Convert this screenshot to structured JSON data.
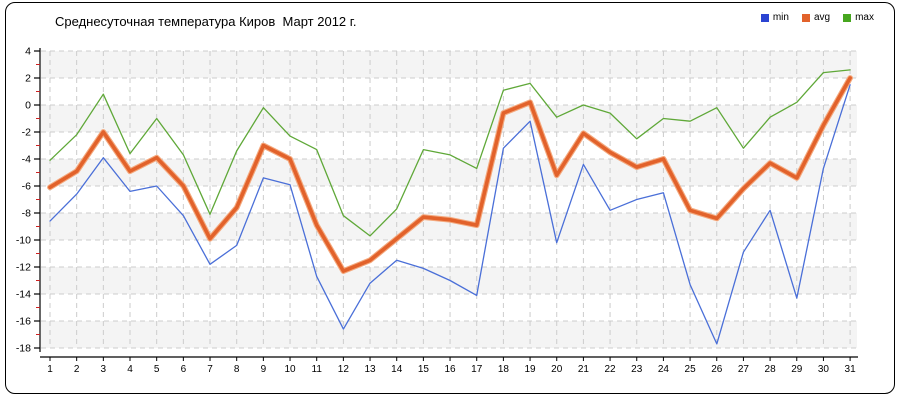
{
  "title": "Среднесуточная температура Киров  Март 2012 г.",
  "legend": {
    "items": [
      {
        "label": "min",
        "color": "#2b44d2"
      },
      {
        "label": "avg",
        "color": "#e2622b"
      },
      {
        "label": "max",
        "color": "#46a61f"
      }
    ]
  },
  "chart_data": {
    "type": "line",
    "title": "Среднесуточная температура Киров  Март 2012 г.",
    "x_label": "",
    "y_label": "",
    "x": [
      1,
      2,
      3,
      4,
      5,
      6,
      7,
      8,
      9,
      10,
      11,
      12,
      13,
      14,
      15,
      16,
      17,
      18,
      19,
      20,
      21,
      22,
      23,
      24,
      25,
      26,
      27,
      28,
      29,
      30,
      31
    ],
    "x_tick_labels": [
      "1",
      "2",
      "3",
      "4",
      "5",
      "6",
      "7",
      "8",
      "9",
      "10",
      "11",
      "12",
      "13",
      "14",
      "15",
      "16",
      "17",
      "18",
      "19",
      "20",
      "21",
      "22",
      "23",
      "24",
      "25",
      "26",
      "27",
      "28",
      "29",
      "30",
      "31"
    ],
    "y_tick_labels": [
      "4",
      "2",
      "0",
      "-2",
      "-4",
      "-6",
      "-8",
      "-10",
      "-12",
      "-14",
      "-16",
      "-18"
    ],
    "y_ticks": [
      4,
      2,
      0,
      -2,
      -4,
      -6,
      -8,
      -10,
      -12,
      -14,
      -16,
      -18
    ],
    "y_minor_ticks": [
      3,
      1,
      -1,
      -3,
      -5,
      -7,
      -9,
      -11,
      -13,
      -15,
      -17
    ],
    "ylim": [
      -18,
      4
    ],
    "grid": "dashed-both-axes",
    "band_fill": "#f4f4f4",
    "grid_color": "#cccccc",
    "axis_color": "#000000",
    "minor_tick_color": "#cc2222",
    "legend_position": "top-right",
    "series": [
      {
        "name": "min",
        "color": "#4a6fd8",
        "width": 1.3,
        "values": [
          -8.6,
          -6.6,
          -3.9,
          -6.4,
          -6.0,
          -8.2,
          -11.8,
          -10.4,
          -5.4,
          -5.9,
          -12.7,
          -16.6,
          -13.2,
          -11.5,
          -12.1,
          -13.0,
          -14.1,
          -3.2,
          -1.2,
          -10.2,
          -4.4,
          -7.8,
          -7.0,
          -6.5,
          -13.3,
          -17.7,
          -10.9,
          -7.8,
          -14.3,
          -4.7,
          1.5
        ]
      },
      {
        "name": "avg",
        "color": "#e2622b",
        "halo_color": "#f4a97e",
        "width": 3.6,
        "values": [
          -6.1,
          -4.9,
          -2.0,
          -4.9,
          -3.9,
          -6.0,
          -9.9,
          -7.6,
          -3.0,
          -4.0,
          -8.9,
          -12.3,
          -11.5,
          -9.9,
          -8.3,
          -8.5,
          -8.9,
          -0.6,
          0.2,
          -5.2,
          -2.1,
          -3.5,
          -4.6,
          -4.0,
          -7.8,
          -8.4,
          -6.2,
          -4.3,
          -5.4,
          -1.5,
          2.0
        ]
      },
      {
        "name": "max",
        "color": "#5fa838",
        "width": 1.3,
        "values": [
          -4.1,
          -2.2,
          0.8,
          -3.6,
          -1.0,
          -3.7,
          -8.1,
          -3.4,
          -0.2,
          -2.3,
          -3.3,
          -8.2,
          -9.7,
          -7.7,
          -3.3,
          -3.7,
          -4.7,
          1.1,
          1.6,
          -0.9,
          0.0,
          -0.6,
          -2.5,
          -1.0,
          -1.2,
          -0.2,
          -3.2,
          -0.9,
          0.2,
          2.4,
          2.6
        ]
      }
    ]
  }
}
